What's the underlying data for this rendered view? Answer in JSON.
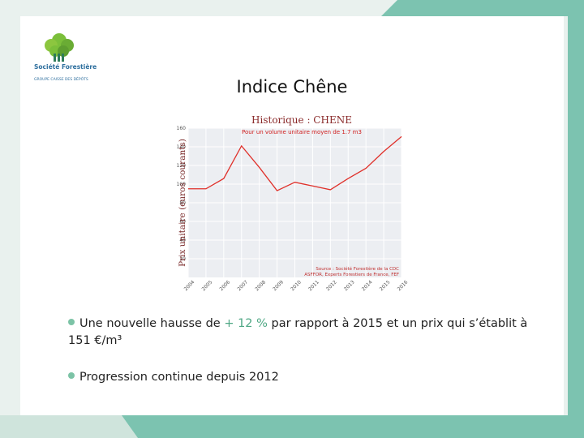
{
  "slide": {
    "logo_name": "Société Forestière",
    "logo_group": "GROUPE CAISSE DES DÉPÔTS",
    "title": "Indice Chêne",
    "bullets": [
      [
        "Une nouvelle hausse de ",
        "+ 12 %",
        " par rapport à 2015 et un prix qui s’établit à 151 €/m³"
      ],
      [
        "Progression continue depuis 2012"
      ]
    ]
  },
  "chart_data": {
    "type": "line",
    "title": "Historique : CHENE",
    "subtitle": "Pour un volume unitaire moyen de 1.7 m3",
    "y_label": "Prix unitaire (euros courants)",
    "source": [
      "Source : Société Forestière de la CDC",
      "ASFFOR, Experts Forestiers de France, FEF"
    ],
    "categories": [
      "2004",
      "2005",
      "2006",
      "2007",
      "2008",
      "2009",
      "2010",
      "2011",
      "2012",
      "2013",
      "2014",
      "2015",
      "2016"
    ],
    "values": [
      95,
      95,
      106,
      141,
      118,
      93,
      102,
      98,
      94,
      106,
      117,
      135,
      151
    ],
    "color": "#e0302a",
    "ylim": [
      0,
      160
    ],
    "yticks": [
      20,
      40,
      60,
      80,
      100,
      120,
      140,
      160
    ],
    "grid": true
  }
}
